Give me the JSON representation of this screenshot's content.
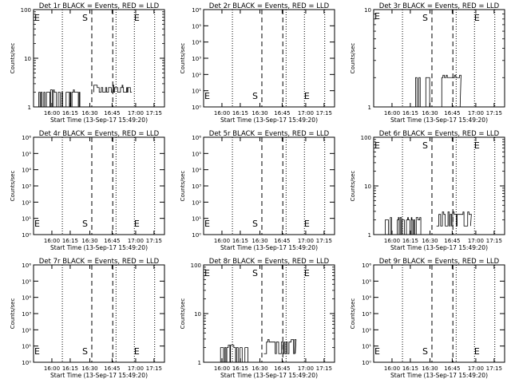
{
  "chart_data": [
    {
      "type": "line",
      "title": "Det 1r BLACK = Events, RED = LLD",
      "xlabel": "Start Time (13-Sep-17 15:49:20)",
      "ylabel": "Counts/sec",
      "yscale": "log",
      "ylim": [
        1,
        100
      ],
      "ytick_labels": [
        "1",
        "10",
        "100"
      ],
      "xtick_labels": [
        "16:00",
        "16:15",
        "16:30",
        "16:45",
        "17:00",
        "17:15"
      ],
      "markers": {
        "E_left": "E",
        "S": "S",
        "E_right": "E"
      },
      "series": [
        {
          "color": "#000000",
          "segments": [
            {
              "x0": 0.04,
              "x1": 0.36,
              "base": 1,
              "level": 2,
              "spiky": true
            },
            {
              "x0": 0.46,
              "x1": 0.74,
              "base": 2,
              "level": 2.5,
              "spiky": true
            }
          ]
        }
      ]
    },
    {
      "type": "line",
      "title": "Det 2r BLACK = Events, RED = LLD",
      "xlabel": "Start Time (13-Sep-17 15:49:20)",
      "ylabel": "Counts/sec",
      "yscale": "log",
      "ylim": [
        1,
        1000000
      ],
      "ytick_labels": [
        "10⁰",
        "10¹",
        "10²",
        "10³",
        "10⁴",
        "10⁵",
        "10⁶"
      ],
      "xtick_labels": [
        "16:00",
        "16:15",
        "16:30",
        "16:45",
        "17:00",
        "17:15"
      ],
      "markers": {
        "E_left": "E",
        "S": "S",
        "E_right": "E"
      },
      "series": []
    },
    {
      "type": "line",
      "title": "Det 3r BLACK = Events, RED = LLD",
      "xlabel": "Start Time (13-Sep-17 15:49:20)",
      "ylabel": "Counts/sec",
      "yscale": "log",
      "ylim": [
        1,
        10
      ],
      "ytick_labels": [
        "1",
        "10"
      ],
      "xtick_labels": [
        "16:00",
        "16:15",
        "16:30",
        "16:45",
        "17:00",
        "17:15"
      ],
      "markers": {
        "E_left": "E",
        "S": "S",
        "E_right": "E"
      },
      "series": [
        {
          "color": "#000000",
          "segments": [
            {
              "x0": 0.32,
              "x1": 0.44,
              "base": 1,
              "level": 2,
              "spiky": true
            },
            {
              "x0": 0.52,
              "x1": 0.66,
              "base": 1,
              "level": 2,
              "spiky": true
            }
          ]
        }
      ]
    },
    {
      "type": "line",
      "title": "Det 4r BLACK = Events, RED = LLD",
      "xlabel": "Start Time (13-Sep-17 15:49:20)",
      "ylabel": "Counts/sec",
      "yscale": "log",
      "ylim": [
        1,
        1000000
      ],
      "ytick_labels": [
        "10⁰",
        "10¹",
        "10²",
        "10³",
        "10⁴",
        "10⁵",
        "10⁶"
      ],
      "xtick_labels": [
        "16:00",
        "16:15",
        "16:30",
        "16:45",
        "17:00",
        "17:15"
      ],
      "markers": {
        "E_left": "E",
        "S": "S",
        "E_right": "E"
      },
      "series": []
    },
    {
      "type": "line",
      "title": "Det 5r BLACK = Events, RED = LLD",
      "xlabel": "Start Time (13-Sep-17 15:49:20)",
      "ylabel": "Counts/sec",
      "yscale": "log",
      "ylim": [
        1,
        1000000
      ],
      "ytick_labels": [
        "10⁰",
        "10¹",
        "10²",
        "10³",
        "10⁴",
        "10⁵",
        "10⁶"
      ],
      "xtick_labels": [
        "16:00",
        "16:15",
        "16:30",
        "16:45",
        "17:00",
        "17:15"
      ],
      "markers": {
        "E_left": "E",
        "S": "S",
        "E_right": "E"
      },
      "series": []
    },
    {
      "type": "line",
      "title": "Det 6r BLACK = Events, RED = LLD",
      "xlabel": "Start Time (13-Sep-17 15:49:20)",
      "ylabel": "Counts/sec",
      "yscale": "log",
      "ylim": [
        1,
        100
      ],
      "ytick_labels": [
        "1",
        "10",
        "100"
      ],
      "xtick_labels": [
        "16:00",
        "16:15",
        "16:30",
        "16:45",
        "17:00",
        "17:15"
      ],
      "markers": {
        "E_left": "E",
        "S": "S",
        "E_right": "E"
      },
      "series": [
        {
          "color": "#000000",
          "segments": [
            {
              "x0": 0.08,
              "x1": 0.36,
              "base": 1,
              "level": 2,
              "spiky": true
            },
            {
              "x0": 0.48,
              "x1": 0.74,
              "base": 1.5,
              "level": 2.6,
              "spiky": true
            }
          ]
        }
      ]
    },
    {
      "type": "line",
      "title": "Det 7r BLACK = Events, RED = LLD",
      "xlabel": "Start Time (13-Sep-17 15:49:20)",
      "ylabel": "Counts/sec",
      "yscale": "log",
      "ylim": [
        1,
        1000000
      ],
      "ytick_labels": [
        "10⁰",
        "10¹",
        "10²",
        "10³",
        "10⁴",
        "10⁵",
        "10⁶"
      ],
      "xtick_labels": [
        "16:00",
        "16:15",
        "16:30",
        "16:45",
        "17:00",
        "17:15"
      ],
      "markers": {
        "E_left": "E",
        "S": "S",
        "E_right": "E"
      },
      "series": []
    },
    {
      "type": "line",
      "title": "Det 8r BLACK = Events, RED = LLD",
      "xlabel": "Start Time (13-Sep-17 15:49:20)",
      "ylabel": "Counts/sec",
      "yscale": "log",
      "ylim": [
        1,
        100
      ],
      "ytick_labels": [
        "1",
        "10",
        "100"
      ],
      "xtick_labels": [
        "16:00",
        "16:15",
        "16:30",
        "16:45",
        "17:00",
        "17:15"
      ],
      "markers": {
        "E_left": "E",
        "S": "S",
        "E_right": "E"
      },
      "series": [
        {
          "color": "#000000",
          "segments": [
            {
              "x0": 0.12,
              "x1": 0.36,
              "base": 1,
              "level": 2,
              "spiky": true
            },
            {
              "x0": 0.46,
              "x1": 0.7,
              "base": 1.5,
              "level": 2.6,
              "spiky": true
            }
          ]
        }
      ]
    },
    {
      "type": "line",
      "title": "Det 9r BLACK = Events, RED = LLD",
      "xlabel": "Start Time (13-Sep-17 15:49:20)",
      "ylabel": "Counts/sec",
      "yscale": "log",
      "ylim": [
        1,
        1000000
      ],
      "ytick_labels": [
        "10⁰",
        "10¹",
        "10²",
        "10³",
        "10⁴",
        "10⁵",
        "10⁶"
      ],
      "xtick_labels": [
        "16:00",
        "16:15",
        "16:30",
        "16:45",
        "17:00",
        "17:15"
      ],
      "markers": {
        "E_left": "E",
        "S": "S",
        "E_right": "E"
      },
      "series": []
    }
  ]
}
